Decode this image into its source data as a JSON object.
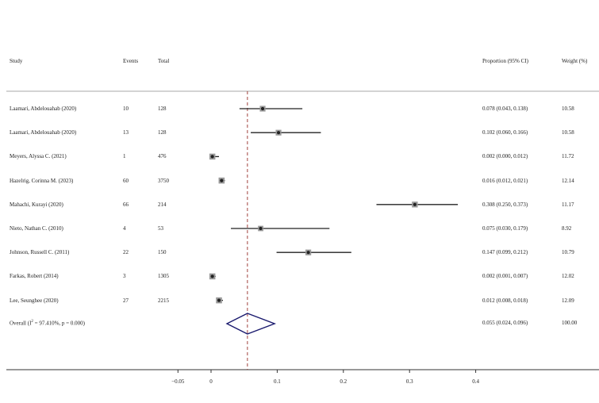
{
  "headers": {
    "study": "Study",
    "events": "Events",
    "total": "Total",
    "ci": "Proportion (95% CI)",
    "weight": "Weight (%)"
  },
  "overall": {
    "label_prefix": "Overall  (I",
    "label_sup": "2",
    "label_suffix": " = 97.410%, p = 0.000)",
    "estimate": 0.055,
    "lower": 0.024,
    "upper": 0.096,
    "ci_text": "0.055 (0.024, 0.096)",
    "weight": "100.00"
  },
  "chart_data": {
    "type": "forest",
    "xlim": [
      -0.05,
      0.4
    ],
    "ticks": [
      -0.05,
      0,
      0.1,
      0.2,
      0.3,
      0.4
    ],
    "tick_labels": [
      "−0.05",
      "0",
      "0.1",
      "0.2",
      "0.3",
      "0.4"
    ],
    "reference_line": 0.055,
    "colors": {
      "marker": "#222222",
      "box": "#9a9a9a",
      "diamond": "#1a1a6e",
      "refline": "#a0413c"
    },
    "studies": [
      {
        "name": "Laamari, Abdelouahab (2020)",
        "events": "10",
        "total": "128",
        "est": 0.078,
        "lo": 0.043,
        "hi": 0.138,
        "ci_text": "0.078 (0.043, 0.138)",
        "weight": "10.58"
      },
      {
        "name": "Laamari, Abdelouahab (2020)",
        "events": "13",
        "total": "128",
        "est": 0.102,
        "lo": 0.06,
        "hi": 0.166,
        "ci_text": "0.102 (0.060, 0.166)",
        "weight": "10.58"
      },
      {
        "name": "Meyers, Alyssa C. (2021)",
        "events": "1",
        "total": "476",
        "est": 0.002,
        "lo": 0.0,
        "hi": 0.012,
        "ci_text": "0.002 (0.000, 0.012)",
        "weight": "11.72"
      },
      {
        "name": "Hazelrig, Corinna M. (2023)",
        "events": "60",
        "total": "3750",
        "est": 0.016,
        "lo": 0.012,
        "hi": 0.021,
        "ci_text": "0.016 (0.012, 0.021)",
        "weight": "12.14"
      },
      {
        "name": "Mahachi, Kurayi (2020)",
        "events": "66",
        "total": "214",
        "est": 0.308,
        "lo": 0.25,
        "hi": 0.373,
        "ci_text": "0.308 (0.250, 0.373)",
        "weight": "11.17"
      },
      {
        "name": "Nieto, Nathan C. (2010)",
        "events": "4",
        "total": "53",
        "est": 0.075,
        "lo": 0.03,
        "hi": 0.179,
        "ci_text": "0.075 (0.030, 0.179)",
        "weight": "8.92"
      },
      {
        "name": "Johnson, Russell C. (2011)",
        "events": "22",
        "total": "150",
        "est": 0.147,
        "lo": 0.099,
        "hi": 0.212,
        "ci_text": "0.147 (0.099, 0.212)",
        "weight": "10.79"
      },
      {
        "name": "Farkas, Robert (2014)",
        "events": "3",
        "total": "1305",
        "est": 0.002,
        "lo": 0.001,
        "hi": 0.007,
        "ci_text": "0.002 (0.001, 0.007)",
        "weight": "12.02"
      },
      {
        "name": "Lee, Seunghee (2020)",
        "events": "27",
        "total": "2215",
        "est": 0.012,
        "lo": 0.008,
        "hi": 0.018,
        "ci_text": "0.012 (0.008, 0.018)",
        "weight": "12.09"
      }
    ]
  }
}
